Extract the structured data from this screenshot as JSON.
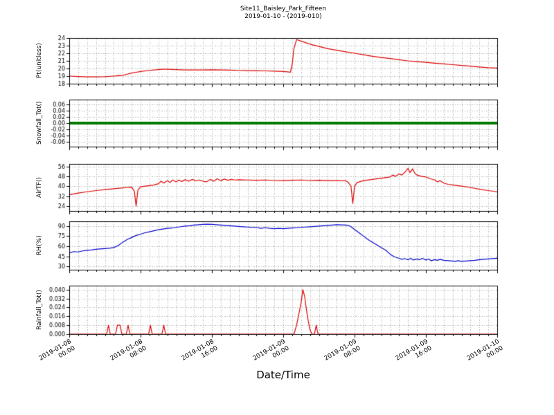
{
  "title": {
    "line1": "Site11_Baisley_Park_Fifteen",
    "line2": "2019-01-10 - (2019-010)"
  },
  "xlabel": "Date/Time",
  "xticks": {
    "positions": [
      0,
      8,
      16,
      24,
      32,
      40,
      48
    ],
    "labels": [
      "2019-01-08\n00:00",
      "2019-01-08\n08:00",
      "2019-01-08\n16:00",
      "2019-01-09\n00:00",
      "2019-01-09\n08:00",
      "2019-01-09\n16:00",
      "2019-01-10\n00:00"
    ]
  },
  "chart_data": [
    {
      "type": "line",
      "ylabel": "Pt(unitless)",
      "color": "#dd0000",
      "linewidth": 1.2,
      "ylim": [
        18,
        24
      ],
      "yticks": [
        18,
        19,
        20,
        21,
        22,
        23,
        24
      ],
      "ytick_decimals": 0,
      "x_hours_range": [
        0,
        48
      ],
      "points": [
        [
          0,
          19.0
        ],
        [
          1,
          18.95
        ],
        [
          2,
          18.9
        ],
        [
          3,
          18.9
        ],
        [
          4,
          18.92
        ],
        [
          5,
          19.0
        ],
        [
          5.5,
          19.05
        ],
        [
          6,
          19.1
        ],
        [
          6.5,
          19.25
        ],
        [
          7,
          19.4
        ],
        [
          7.5,
          19.5
        ],
        [
          8,
          19.6
        ],
        [
          9,
          19.75
        ],
        [
          10,
          19.85
        ],
        [
          10.5,
          19.9
        ],
        [
          11,
          19.9
        ],
        [
          12,
          19.85
        ],
        [
          13,
          19.8
        ],
        [
          14,
          19.82
        ],
        [
          15,
          19.8
        ],
        [
          16,
          19.83
        ],
        [
          17,
          19.8
        ],
        [
          18,
          19.78
        ],
        [
          19,
          19.75
        ],
        [
          20,
          19.72
        ],
        [
          21,
          19.7
        ],
        [
          22,
          19.68
        ],
        [
          23,
          19.65
        ],
        [
          24,
          19.6
        ],
        [
          24.5,
          19.55
        ],
        [
          24.8,
          19.5
        ],
        [
          25,
          20.5
        ],
        [
          25.2,
          22.6
        ],
        [
          25.5,
          23.8
        ],
        [
          26,
          23.6
        ],
        [
          26.5,
          23.4
        ],
        [
          27,
          23.2
        ],
        [
          28,
          22.9
        ],
        [
          29,
          22.6
        ],
        [
          30,
          22.4
        ],
        [
          31,
          22.2
        ],
        [
          32,
          22.0
        ],
        [
          33,
          21.8
        ],
        [
          34,
          21.6
        ],
        [
          35,
          21.45
        ],
        [
          36,
          21.3
        ],
        [
          37,
          21.15
        ],
        [
          38,
          21.0
        ],
        [
          39,
          20.9
        ],
        [
          40,
          20.8
        ],
        [
          41,
          20.7
        ],
        [
          42,
          20.6
        ],
        [
          43,
          20.5
        ],
        [
          44,
          20.4
        ],
        [
          45,
          20.3
        ],
        [
          46,
          20.2
        ],
        [
          47,
          20.1
        ],
        [
          48,
          20.05
        ]
      ]
    },
    {
      "type": "line",
      "ylabel": "Snowfall_Tot()",
      "color": "#007a00",
      "linewidth": 4,
      "ylim": [
        -0.075,
        0.075
      ],
      "yticks": [
        -0.06,
        -0.04,
        -0.02,
        0.0,
        0.02,
        0.04,
        0.06
      ],
      "ytick_decimals": 2,
      "x_hours_range": [
        0,
        48
      ],
      "points": [
        [
          0,
          0
        ],
        [
          48,
          0
        ]
      ]
    },
    {
      "type": "line",
      "ylabel": "AirTF()",
      "color": "#dd0000",
      "linewidth": 1.2,
      "ylim": [
        20,
        58
      ],
      "yticks": [
        24,
        32,
        40,
        48,
        56
      ],
      "ytick_decimals": 0,
      "x_hours_range": [
        0,
        48
      ],
      "points": [
        [
          0,
          33
        ],
        [
          1,
          34.5
        ],
        [
          2,
          35.5
        ],
        [
          3,
          36.5
        ],
        [
          4,
          37.2
        ],
        [
          5,
          38
        ],
        [
          6,
          38.6
        ],
        [
          6.5,
          39
        ],
        [
          7,
          39.2
        ],
        [
          7.3,
          36
        ],
        [
          7.5,
          24
        ],
        [
          7.7,
          37
        ],
        [
          8,
          39.5
        ],
        [
          8.5,
          40
        ],
        [
          9,
          40.5
        ],
        [
          9.5,
          41
        ],
        [
          10,
          42
        ],
        [
          10.3,
          44
        ],
        [
          10.6,
          42.5
        ],
        [
          11,
          44.5
        ],
        [
          11.3,
          43
        ],
        [
          11.6,
          45
        ],
        [
          12,
          43.5
        ],
        [
          12.3,
          45
        ],
        [
          12.6,
          43.8
        ],
        [
          13,
          45.2
        ],
        [
          13.4,
          44
        ],
        [
          13.8,
          45.5
        ],
        [
          14.2,
          44.3
        ],
        [
          14.6,
          45
        ],
        [
          15,
          44
        ],
        [
          15.4,
          43.5
        ],
        [
          15.8,
          45.5
        ],
        [
          16.2,
          44
        ],
        [
          16.6,
          46
        ],
        [
          17,
          44.5
        ],
        [
          17.4,
          45.8
        ],
        [
          17.8,
          44.8
        ],
        [
          18.2,
          45.5
        ],
        [
          18.6,
          45
        ],
        [
          19,
          45.2
        ],
        [
          20,
          45
        ],
        [
          21,
          44.8
        ],
        [
          22,
          45
        ],
        [
          23,
          44.6
        ],
        [
          24,
          44.5
        ],
        [
          25,
          44.8
        ],
        [
          26,
          45
        ],
        [
          27,
          44.6
        ],
        [
          28,
          44.8
        ],
        [
          29,
          44.5
        ],
        [
          30,
          44.6
        ],
        [
          31,
          44.4
        ],
        [
          31.3,
          43
        ],
        [
          31.6,
          40
        ],
        [
          31.8,
          26
        ],
        [
          32,
          40
        ],
        [
          32.3,
          43
        ],
        [
          33,
          44.5
        ],
        [
          34,
          45.5
        ],
        [
          35,
          46.5
        ],
        [
          36,
          47.5
        ],
        [
          36.3,
          49
        ],
        [
          36.6,
          48
        ],
        [
          37,
          50
        ],
        [
          37.3,
          49
        ],
        [
          37.6,
          51
        ],
        [
          38,
          54.5
        ],
        [
          38.2,
          51
        ],
        [
          38.5,
          54
        ],
        [
          38.8,
          50
        ],
        [
          39,
          49
        ],
        [
          39.5,
          48
        ],
        [
          40,
          47.5
        ],
        [
          40.5,
          46
        ],
        [
          41,
          45
        ],
        [
          41.3,
          43.5
        ],
        [
          41.6,
          44.5
        ],
        [
          42,
          42.5
        ],
        [
          42.5,
          41.5
        ],
        [
          43,
          41
        ],
        [
          44,
          40
        ],
        [
          45,
          39
        ],
        [
          46,
          37.5
        ],
        [
          47,
          36.5
        ],
        [
          48,
          35.5
        ]
      ]
    },
    {
      "type": "line",
      "ylabel": "RH(%)",
      "color": "#0000cc",
      "linewidth": 1.2,
      "ylim": [
        25,
        97
      ],
      "yticks": [
        30,
        45,
        60,
        75,
        90
      ],
      "ytick_decimals": 0,
      "x_hours_range": [
        0,
        48
      ],
      "points": [
        [
          0,
          50
        ],
        [
          0.5,
          52
        ],
        [
          1,
          51.5
        ],
        [
          1.5,
          53
        ],
        [
          2,
          54
        ],
        [
          2.5,
          54.5
        ],
        [
          3,
          55.5
        ],
        [
          3.5,
          56
        ],
        [
          4,
          56.5
        ],
        [
          4.5,
          57
        ],
        [
          5,
          58
        ],
        [
          5.5,
          61
        ],
        [
          6,
          66
        ],
        [
          6.5,
          70
        ],
        [
          7,
          73
        ],
        [
          7.5,
          76
        ],
        [
          8,
          78
        ],
        [
          8.5,
          80
        ],
        [
          9,
          81.5
        ],
        [
          9.5,
          83
        ],
        [
          10,
          84.5
        ],
        [
          10.5,
          85.5
        ],
        [
          11,
          86.5
        ],
        [
          11.5,
          87
        ],
        [
          12,
          88
        ],
        [
          12.5,
          89
        ],
        [
          13,
          90
        ],
        [
          13.5,
          90.5
        ],
        [
          14,
          91.5
        ],
        [
          14.5,
          92
        ],
        [
          15,
          92.5
        ],
        [
          15.5,
          92.8
        ],
        [
          16,
          92.5
        ],
        [
          16.5,
          92
        ],
        [
          17,
          91.5
        ],
        [
          17.5,
          91
        ],
        [
          18,
          90.5
        ],
        [
          18.5,
          90
        ],
        [
          19,
          89.5
        ],
        [
          19.5,
          89
        ],
        [
          20,
          88.5
        ],
        [
          20.5,
          88
        ],
        [
          21,
          88
        ],
        [
          21.5,
          86.5
        ],
        [
          22,
          87.5
        ],
        [
          22.5,
          86.5
        ],
        [
          23,
          86
        ],
        [
          23.5,
          86.5
        ],
        [
          24,
          86
        ],
        [
          24.5,
          86.5
        ],
        [
          25,
          87
        ],
        [
          25.5,
          87.5
        ],
        [
          26,
          88
        ],
        [
          26.5,
          88.5
        ],
        [
          27,
          89
        ],
        [
          27.5,
          89.5
        ],
        [
          28,
          90
        ],
        [
          28.5,
          90.5
        ],
        [
          29,
          91
        ],
        [
          29.5,
          91.5
        ],
        [
          30,
          92
        ],
        [
          30.5,
          91.8
        ],
        [
          31,
          91.5
        ],
        [
          31.3,
          91
        ],
        [
          31.6,
          89
        ],
        [
          32,
          85
        ],
        [
          32.5,
          80
        ],
        [
          33,
          75
        ],
        [
          33.5,
          70
        ],
        [
          34,
          66
        ],
        [
          34.5,
          62
        ],
        [
          35,
          58
        ],
        [
          35.5,
          54
        ],
        [
          36,
          48
        ],
        [
          36.5,
          44
        ],
        [
          37,
          42
        ],
        [
          37.3,
          40.5
        ],
        [
          37.6,
          41.5
        ],
        [
          38,
          40
        ],
        [
          38.3,
          42
        ],
        [
          38.6,
          39.5
        ],
        [
          39,
          41
        ],
        [
          39.3,
          40
        ],
        [
          39.6,
          42
        ],
        [
          40,
          39.5
        ],
        [
          40.3,
          41
        ],
        [
          40.6,
          38.5
        ],
        [
          41,
          40
        ],
        [
          41.3,
          39
        ],
        [
          41.6,
          40.5
        ],
        [
          42,
          39
        ],
        [
          42.5,
          38.5
        ],
        [
          43,
          38
        ],
        [
          43.3,
          37.5
        ],
        [
          43.6,
          38.5
        ],
        [
          44,
          37.5
        ],
        [
          44.5,
          38
        ],
        [
          45,
          38.5
        ],
        [
          45.5,
          39
        ],
        [
          46,
          40
        ],
        [
          46.5,
          40.5
        ],
        [
          47,
          41
        ],
        [
          47.5,
          41.5
        ],
        [
          48,
          42
        ]
      ]
    },
    {
      "type": "line",
      "ylabel": "Rainfall_Tot()",
      "color": "#dd0000",
      "linewidth": 1.2,
      "ylim": [
        0,
        0.0435
      ],
      "yticks": [
        0.0,
        0.008,
        0.016,
        0.024,
        0.032,
        0.04
      ],
      "ytick_decimals": 3,
      "x_hours_range": [
        0,
        48
      ],
      "points": [
        [
          0,
          0
        ],
        [
          4.2,
          0
        ],
        [
          4.4,
          0.008
        ],
        [
          4.6,
          0
        ],
        [
          5.2,
          0
        ],
        [
          5.4,
          0.008
        ],
        [
          5.7,
          0.008
        ],
        [
          5.9,
          0
        ],
        [
          6.4,
          0
        ],
        [
          6.6,
          0.008
        ],
        [
          6.8,
          0
        ],
        [
          8.9,
          0
        ],
        [
          9.1,
          0.008
        ],
        [
          9.3,
          0
        ],
        [
          10.4,
          0
        ],
        [
          10.6,
          0.008
        ],
        [
          10.8,
          0
        ],
        [
          25.2,
          0
        ],
        [
          25.5,
          0.008
        ],
        [
          25.8,
          0.02
        ],
        [
          26.0,
          0.028
        ],
        [
          26.2,
          0.04
        ],
        [
          26.4,
          0.034
        ],
        [
          26.6,
          0.022
        ],
        [
          26.8,
          0.012
        ],
        [
          27.0,
          0.004
        ],
        [
          27.2,
          0
        ],
        [
          27.5,
          0
        ],
        [
          27.7,
          0.008
        ],
        [
          27.9,
          0
        ],
        [
          48,
          0
        ]
      ]
    }
  ]
}
